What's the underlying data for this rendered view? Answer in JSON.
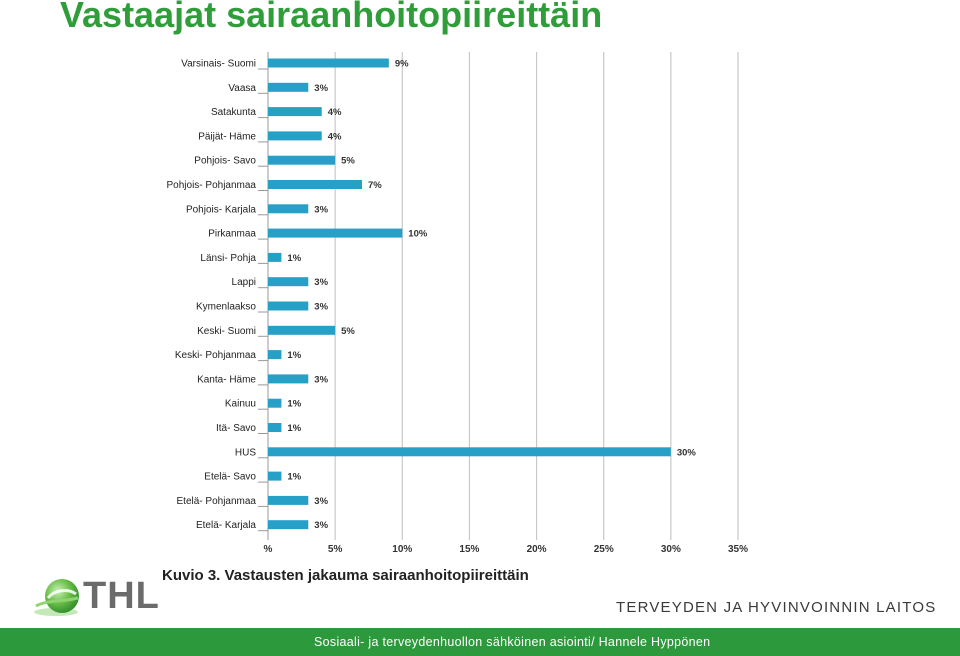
{
  "slide": {
    "title": "Vastaajat sairaanhoitopiireittäin",
    "caption": "Kuvio 3. Vastausten jakauma sairaanhoitopiireittäin",
    "logo_text": "THL",
    "organization": "TERVEYDEN JA HYVINVOINNIN LAITOS",
    "footer": "Sosiaali- ja terveydenhuollon sähköinen asiointi/ Hannele Hyppönen"
  },
  "chart_data": {
    "type": "bar",
    "orientation": "horizontal",
    "title": "",
    "xlabel": "",
    "ylabel": "",
    "categories": [
      "Varsinais- Suomi",
      "Vaasa",
      "Satakunta",
      "Päijät- Häme",
      "Pohjois- Savo",
      "Pohjois- Pohjanmaa",
      "Pohjois- Karjala",
      "Pirkanmaa",
      "Länsi- Pohja",
      "Lappi",
      "Kymenlaakso",
      "Keski- Suomi",
      "Keski- Pohjanmaa",
      "Kanta- Häme",
      "Kainuu",
      "Itä- Savo",
      "HUS",
      "Etelä- Savo",
      "Etelä- Pohjanmaa",
      "Etelä- Karjala"
    ],
    "values": [
      9,
      3,
      4,
      4,
      5,
      7,
      3,
      10,
      1,
      3,
      3,
      5,
      1,
      3,
      1,
      1,
      30,
      1,
      3,
      3
    ],
    "data_labels": [
      "9%",
      "3%",
      "4%",
      "4%",
      "5%",
      "7%",
      "3%",
      "10%",
      "1%",
      "3%",
      "3%",
      "5%",
      "1%",
      "3%",
      "1%",
      "1%",
      "30%",
      "1%",
      "3%",
      "3%"
    ],
    "xlim": [
      0,
      35
    ],
    "x_ticks": [
      0,
      5,
      10,
      15,
      20,
      25,
      30,
      35
    ],
    "x_tick_labels": [
      "%",
      "5%",
      "10%",
      "15%",
      "20%",
      "25%",
      "30%",
      "35%"
    ],
    "grid": true,
    "legend": "none",
    "bar_color": "#27a0c8"
  }
}
